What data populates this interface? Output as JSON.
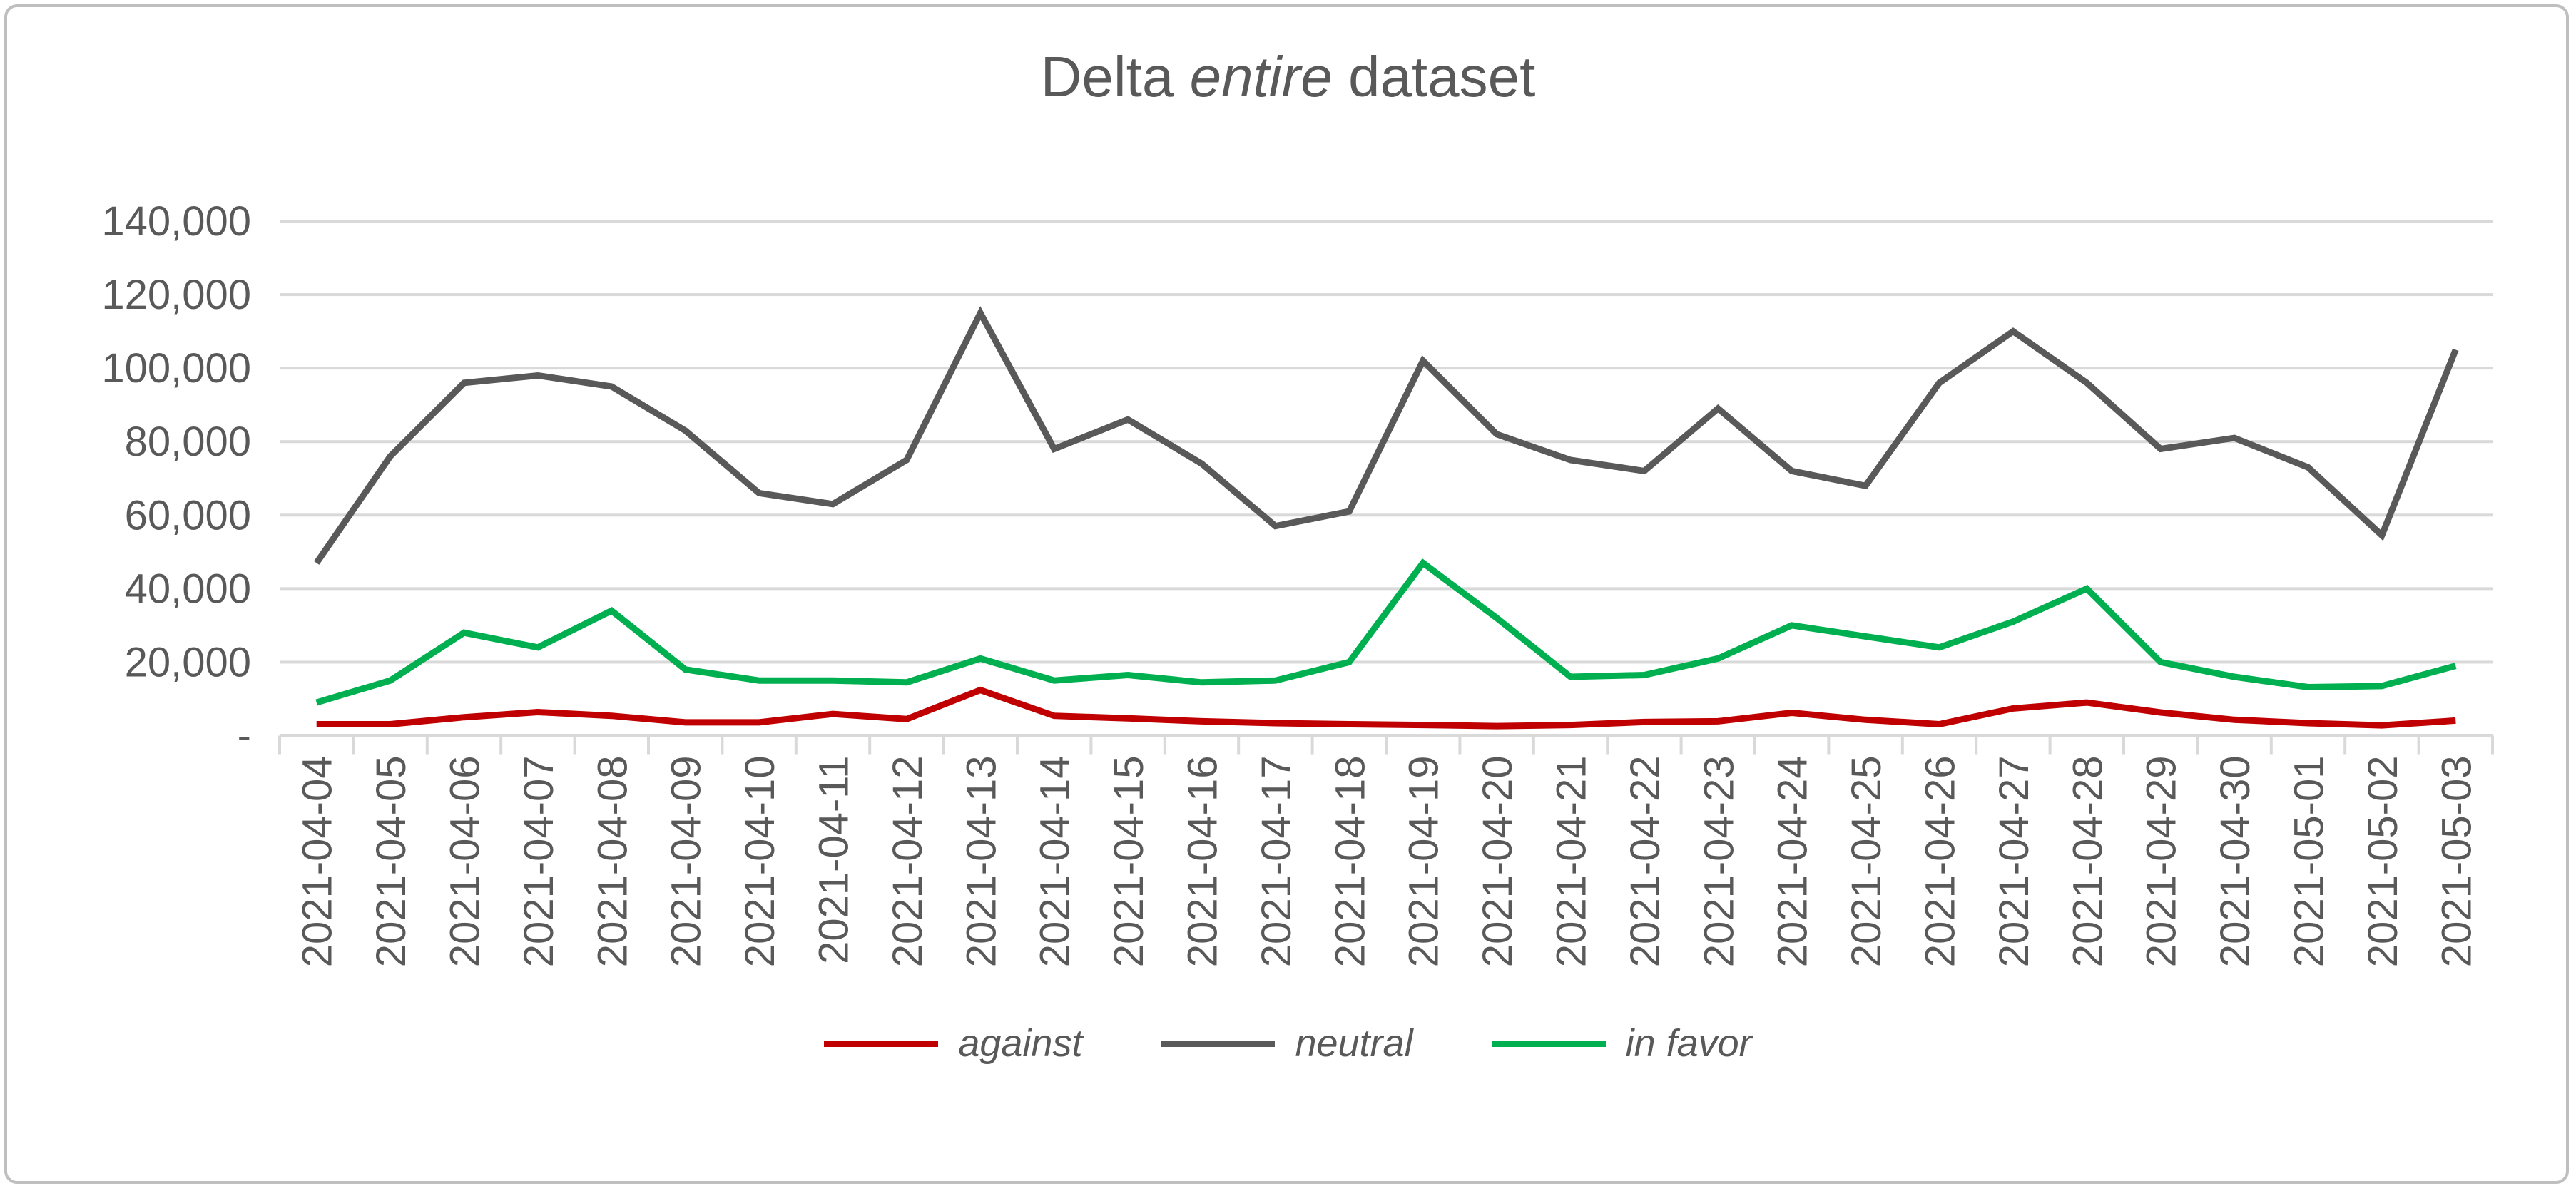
{
  "figure": {
    "background": "#ffffff",
    "border_color": "#bfbfbf",
    "text_color": "#595959",
    "gridline_color": "#d9d9d9"
  },
  "title": {
    "full": "Delta entire dataset",
    "parts": [
      {
        "text": "Delta ",
        "italic": false
      },
      {
        "text": "entire",
        "italic": true
      },
      {
        "text": " dataset",
        "italic": false
      }
    ]
  },
  "chart_data": {
    "type": "line",
    "title": "Delta entire dataset",
    "xlabel": "",
    "ylabel": "",
    "ylim": [
      0,
      140000
    ],
    "ytick_interval": 20000,
    "ytick_labels_top_to_bottom": [
      "140,000",
      "120,000",
      "100,000",
      "80,000",
      "60,000",
      "40,000",
      "20,000",
      "-"
    ],
    "zero_tick_label": "-",
    "grid": "horizontal",
    "legend_position": "bottom",
    "categories": [
      "2021-04-04",
      "2021-04-05",
      "2021-04-06",
      "2021-04-07",
      "2021-04-08",
      "2021-04-09",
      "2021-04-10",
      "2021-04-11",
      "2021-04-12",
      "2021-04-13",
      "2021-04-14",
      "2021-04-15",
      "2021-04-16",
      "2021-04-17",
      "2021-04-18",
      "2021-04-19",
      "2021-04-20",
      "2021-04-21",
      "2021-04-22",
      "2021-04-23",
      "2021-04-24",
      "2021-04-25",
      "2021-04-26",
      "2021-04-27",
      "2021-04-28",
      "2021-04-29",
      "2021-04-30",
      "2021-05-01",
      "2021-05-02",
      "2021-05-03"
    ],
    "series": [
      {
        "name": "against",
        "color": "#c00000",
        "values": [
          3100,
          3100,
          5000,
          6400,
          5400,
          3600,
          3600,
          5900,
          4500,
          12400,
          5400,
          4700,
          3900,
          3400,
          3100,
          2900,
          2600,
          2900,
          3700,
          3900,
          6200,
          4300,
          3100,
          7400,
          9000,
          6300,
          4300,
          3400,
          2800,
          4100
        ]
      },
      {
        "name": "neutral",
        "color": "#595959",
        "values": [
          47000,
          76000,
          96000,
          98000,
          95000,
          83000,
          66000,
          63000,
          75000,
          115000,
          78000,
          86000,
          74000,
          57000,
          61000,
          102000,
          82000,
          75000,
          72000,
          89000,
          72000,
          68000,
          96000,
          110000,
          96000,
          78000,
          81000,
          73000,
          54500,
          105000
        ]
      },
      {
        "name": "in favor",
        "color": "#00b050",
        "values": [
          9000,
          15000,
          28000,
          24000,
          34000,
          18000,
          15000,
          15000,
          14500,
          21000,
          15000,
          16500,
          14500,
          15000,
          20000,
          47000,
          32000,
          16000,
          16500,
          21000,
          30000,
          27000,
          24000,
          31000,
          40000,
          20000,
          16000,
          13200,
          13500,
          19000
        ]
      }
    ]
  },
  "legend": {
    "items": [
      {
        "label": "against",
        "color": "#c00000"
      },
      {
        "label": "neutral",
        "color": "#595959"
      },
      {
        "label": "in favor",
        "color": "#00b050"
      }
    ]
  }
}
